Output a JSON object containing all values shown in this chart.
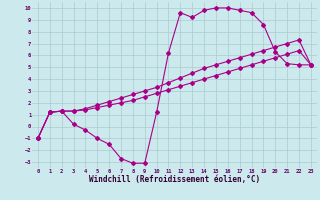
{
  "bg_color": "#cce9ed",
  "line_color": "#aa0088",
  "grid_color": "#aacccc",
  "xlabel": "Windchill (Refroidissement éolien,°C)",
  "xlabel_fontsize": 5.5,
  "xlim": [
    -0.5,
    23.5
  ],
  "ylim": [
    -3.5,
    10.5
  ],
  "xticks": [
    0,
    1,
    2,
    3,
    4,
    5,
    6,
    7,
    8,
    9,
    10,
    11,
    12,
    13,
    14,
    15,
    16,
    17,
    18,
    19,
    20,
    21,
    22,
    23
  ],
  "yticks": [
    -3,
    -2,
    -1,
    0,
    1,
    2,
    3,
    4,
    5,
    6,
    7,
    8,
    9,
    10
  ],
  "curve_dip_x": [
    0,
    1,
    2,
    3,
    4,
    5,
    6,
    7,
    8,
    9,
    10,
    11,
    12,
    13,
    14,
    15,
    16,
    17,
    18,
    19,
    20,
    21,
    22,
    23
  ],
  "curve_dip_y": [
    -1,
    1.2,
    1.3,
    0.2,
    -0.3,
    -1.0,
    -1.5,
    -2.7,
    -3.1,
    -3.1,
    1.2,
    6.2,
    9.6,
    9.2,
    9.8,
    10.0,
    10.0,
    9.8,
    9.6,
    8.6,
    6.3,
    5.3,
    5.2,
    5.2
  ],
  "curve_mid_x": [
    0,
    1,
    2,
    3,
    4,
    5,
    6,
    7,
    8,
    9,
    10,
    11,
    12,
    13,
    14,
    15,
    16,
    17,
    18,
    19,
    20,
    21,
    22,
    23
  ],
  "curve_mid_y": [
    -1,
    1.2,
    1.3,
    1.3,
    1.5,
    1.8,
    2.1,
    2.4,
    2.7,
    3.0,
    3.3,
    3.7,
    4.1,
    4.5,
    4.9,
    5.2,
    5.5,
    5.8,
    6.1,
    6.4,
    6.7,
    7.0,
    7.3,
    5.2
  ],
  "curve_lin_x": [
    0,
    1,
    2,
    3,
    4,
    5,
    6,
    7,
    8,
    9,
    10,
    11,
    12,
    13,
    14,
    15,
    16,
    17,
    18,
    19,
    20,
    21,
    22,
    23
  ],
  "curve_lin_y": [
    -1,
    1.2,
    1.3,
    1.3,
    1.4,
    1.6,
    1.8,
    2.0,
    2.2,
    2.5,
    2.8,
    3.1,
    3.4,
    3.7,
    4.0,
    4.3,
    4.6,
    4.9,
    5.2,
    5.5,
    5.8,
    6.1,
    6.4,
    5.2
  ]
}
